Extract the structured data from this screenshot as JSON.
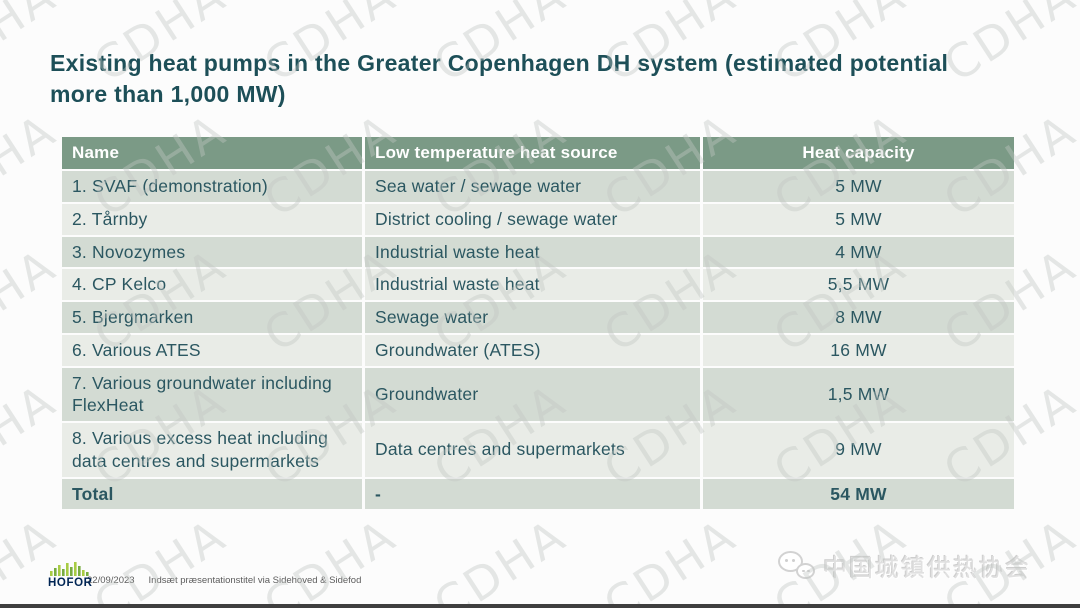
{
  "slide": {
    "title_line1": "Existing heat pumps in the Greater Copenhagen DH system (estimated potential",
    "title_line2": "more than 1,000 MW)"
  },
  "table": {
    "headers": [
      "Name",
      "Low temperature heat source",
      "Heat capacity"
    ],
    "rows": [
      {
        "name": "1. SVAF (demonstration)",
        "source": "Sea water / sewage water",
        "capacity": "5 MW"
      },
      {
        "name": "2. Tårnby",
        "source": "District cooling / sewage water",
        "capacity": "5 MW"
      },
      {
        "name": "3.  Novozymes",
        "source": "Industrial waste heat",
        "capacity": "4 MW"
      },
      {
        "name": "4. CP Kelco",
        "source": "Industrial waste heat",
        "capacity": "5,5 MW"
      },
      {
        "name": "5. Bjergmarken",
        "source": "Sewage water",
        "capacity": "8 MW"
      },
      {
        "name": "6. Various ATES",
        "source": "Groundwater (ATES)",
        "capacity": "16 MW"
      },
      {
        "name": "7. Various groundwater including FlexHeat",
        "source": "Groundwater",
        "capacity": "1,5 MW"
      },
      {
        "name": "8. Various excess heat including data centres and supermarkets",
        "source": "Data centres and supermarkets",
        "capacity": "9 MW"
      }
    ],
    "total": {
      "name": "Total",
      "source": "-",
      "capacity": "54 MW"
    }
  },
  "footer": {
    "logo_text": "HOFOR",
    "date": "22/09/2023",
    "note": "Indsæt præsentationstitel via Sidehoved & Sidefod"
  },
  "association": {
    "name": "中国城镇供热协会"
  },
  "watermark": {
    "text": "CDHA"
  },
  "colors": {
    "header_bg": "#7b9a86",
    "row_dark": "#d3dbd3",
    "row_light": "#e9ece7",
    "title_text": "#1d4f58",
    "body_text": "#2b5761",
    "hofor_navy": "#002554",
    "hofor_green": "#a8cc44"
  }
}
